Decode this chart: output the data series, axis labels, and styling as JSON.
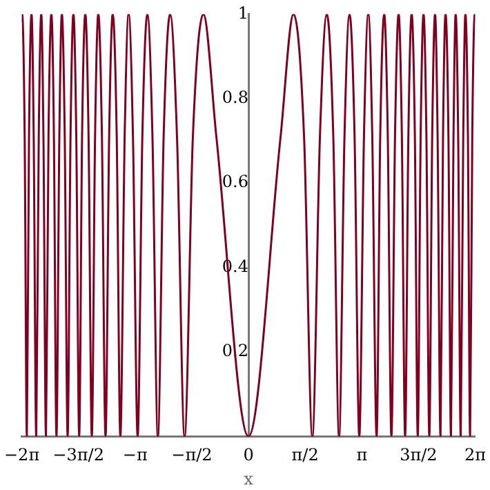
{
  "chart_data": {
    "type": "line",
    "xlabel": "x",
    "x": [
      -6.28,
      -6.27,
      -6.2,
      -6.14,
      -6.08,
      -6.01,
      -5.95,
      -5.88,
      -5.81,
      -5.74,
      -5.68,
      -5.61,
      -5.54,
      -5.46,
      -5.39,
      -5.32,
      -5.24,
      -5.17,
      -5.09,
      -5.01,
      -4.93,
      -4.85,
      -4.77,
      -4.69,
      -4.61,
      -4.52,
      -4.43,
      -4.34,
      -4.25,
      -4.16,
      -4.06,
      -3.96,
      -3.86,
      -3.76,
      -3.65,
      -3.55,
      -3.43,
      -3.32,
      -3.2,
      -3.07,
      -2.94,
      -2.8,
      -2.66,
      -2.51,
      -2.35,
      -2.17,
      -1.98,
      -1.77,
      -1.54,
      -1.25,
      -0.89,
      0,
      0.89,
      1.25,
      1.54,
      1.77,
      1.98,
      2.17,
      2.35,
      2.51,
      2.66,
      2.8,
      2.94,
      3.07,
      3.2,
      3.32,
      3.43,
      3.55,
      3.65,
      3.76,
      3.86,
      3.96,
      4.06,
      4.16,
      4.25,
      4.34,
      4.43,
      4.52,
      4.61,
      4.69,
      4.77,
      4.85,
      4.93,
      5.01,
      5.09,
      5.17,
      5.24,
      5.32,
      5.39,
      5.46,
      5.54,
      5.61,
      5.68,
      5.74,
      5.81,
      5.88,
      5.95,
      6.01,
      6.08,
      6.14,
      6.2,
      6.27,
      6.28
    ],
    "series": [
      {
        "color": "#7f0020",
        "values": [
          0.98,
          1,
          0.71,
          0,
          0.71,
          1,
          0.71,
          0,
          0.71,
          1,
          0.71,
          0,
          0.71,
          1,
          0.71,
          0,
          0.71,
          1,
          0.71,
          0,
          0.71,
          1,
          0.71,
          0,
          0.71,
          1,
          0.71,
          0,
          0.71,
          1,
          0.71,
          0,
          0.71,
          1,
          0.71,
          0,
          0.71,
          1,
          0.71,
          0,
          0.71,
          1,
          0.71,
          0,
          0.71,
          1,
          0.71,
          0,
          0.71,
          1,
          0.71,
          0,
          0.71,
          1,
          0.71,
          0,
          0.71,
          1,
          0.71,
          0,
          0.71,
          1,
          0.71,
          0,
          0.71,
          1,
          0.71,
          0,
          0.71,
          1,
          0.71,
          0,
          0.71,
          1,
          0.71,
          0,
          0.71,
          1,
          0.71,
          0,
          0.71,
          1,
          0.71,
          0,
          0.71,
          1,
          0.71,
          0,
          0.71,
          1,
          0.71,
          0,
          0.71,
          1,
          0.71,
          0,
          0.71,
          1,
          0.71,
          0,
          0.71,
          1,
          0.98
        ]
      }
    ],
    "xlim": [
      -6.28,
      6.28
    ],
    "xticks": [
      {
        "value": -6.28,
        "label": "−2π"
      },
      {
        "value": -4.71,
        "label": "−3π/2"
      },
      {
        "value": -3.14,
        "label": "−π"
      },
      {
        "value": -1.57,
        "label": "−π/2"
      },
      0,
      {
        "value": 1.57,
        "label": "π/2"
      },
      {
        "value": 3.14,
        "label": "π"
      },
      {
        "value": 4.71,
        "label": "3π/2"
      },
      {
        "value": 6.28,
        "label": "2π"
      }
    ],
    "ylim": [
      0,
      1
    ],
    "yticks": [
      0.2,
      0.4,
      0.6,
      0.8,
      1
    ],
    "grid": false,
    "legend": false,
    "marker": "none",
    "line_style": "solid"
  }
}
